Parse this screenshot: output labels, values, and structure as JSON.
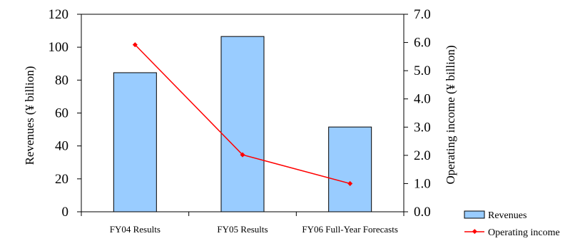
{
  "chart_data": {
    "type": "bar+line",
    "categories": [
      "FY04 Results",
      "FY05 Results",
      "FY06 Full-Year Forecasts"
    ],
    "series": [
      {
        "name": "Revenues",
        "type": "bar",
        "axis": "left",
        "values": [
          84.5,
          106.5,
          51.5
        ]
      },
      {
        "name": "Operating income",
        "type": "line",
        "axis": "right",
        "values": [
          5.92,
          2.02,
          1.0
        ]
      }
    ],
    "ylabel": "Revenues (¥ billion)",
    "ylabel_right": "Operating income (¥ billion)",
    "ylim": [
      0,
      120
    ],
    "ylim_right": [
      0,
      7.0
    ],
    "yticks": [
      "0",
      "20",
      "40",
      "60",
      "80",
      "100",
      "120"
    ],
    "yticks_right": [
      "0.0",
      "1.0",
      "2.0",
      "3.0",
      "4.0",
      "5.0",
      "6.0",
      "7.0"
    ],
    "grid": false,
    "legend_position": "bottom-right",
    "colors": {
      "bar_fill": "#99CCFF",
      "bar_stroke": "#000000",
      "line": "#FF0000"
    }
  }
}
